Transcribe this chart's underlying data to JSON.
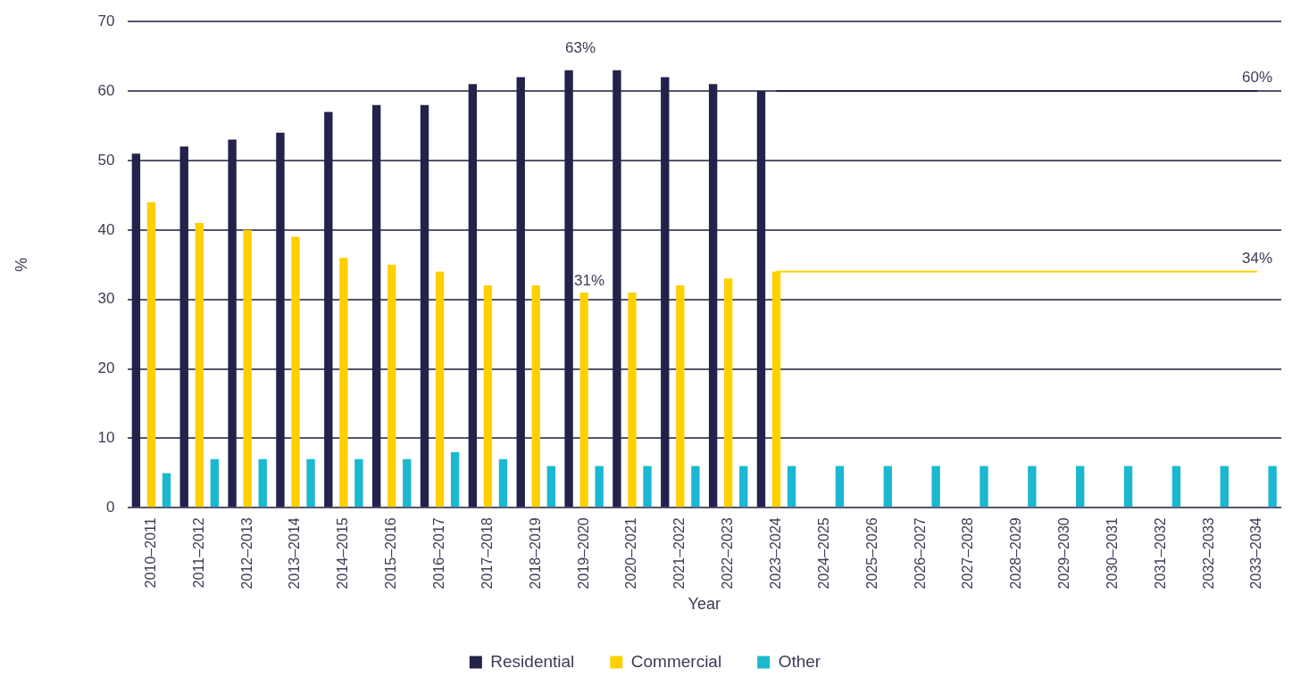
{
  "chart_data": {
    "type": "bar",
    "xlabel": "Year",
    "ylabel": "%",
    "categories": [
      "2010–2011",
      "2011–2012",
      "2012–2013",
      "2013–2014",
      "2014–2015",
      "2015–2016",
      "2016–2017",
      "2017–2018",
      "2018–2019",
      "2019–2020",
      "2020–2021",
      "2021–2022",
      "2022–2023",
      "2023–2024",
      "2024–2025",
      "2025–2026",
      "2026–2027",
      "2027–2028",
      "2028–2029",
      "2029–2030",
      "2030–2031",
      "2031–2032",
      "2032–2033",
      "2033–2034"
    ],
    "series": [
      {
        "name": "Residential",
        "color": "#23224a",
        "values": [
          51,
          52,
          53,
          54,
          57,
          58,
          58,
          61,
          62,
          63,
          63,
          62,
          61,
          60,
          null,
          null,
          null,
          null,
          null,
          null,
          null,
          null,
          null,
          null
        ]
      },
      {
        "name": "Commercial",
        "color": "#ffd000",
        "values": [
          44,
          41,
          40,
          39,
          36,
          35,
          34,
          32,
          32,
          31,
          31,
          32,
          33,
          34,
          null,
          null,
          null,
          null,
          null,
          null,
          null,
          null,
          null,
          null
        ]
      },
      {
        "name": "Other",
        "color": "#1cb8d0",
        "values": [
          5,
          7,
          7,
          7,
          7,
          7,
          8,
          7,
          6,
          6,
          6,
          6,
          6,
          6,
          6,
          6,
          6,
          6,
          6,
          6,
          6,
          6,
          6,
          6
        ]
      },
      {
        "type": "line",
        "color": "#23224a",
        "values": [
          null,
          null,
          null,
          null,
          null,
          null,
          null,
          null,
          null,
          null,
          null,
          null,
          null,
          60,
          60,
          60,
          60,
          60,
          60,
          60,
          60,
          60,
          60,
          60
        ]
      },
      {
        "type": "line",
        "color": "#ffd000",
        "values": [
          null,
          null,
          null,
          null,
          null,
          null,
          null,
          null,
          null,
          null,
          null,
          null,
          null,
          34,
          34,
          34,
          34,
          34,
          34,
          34,
          34,
          34,
          34,
          34
        ]
      }
    ],
    "ylim": [
      0,
      70
    ],
    "yticks": [
      0,
      10,
      20,
      30,
      40,
      50,
      60,
      70
    ],
    "grid": "y",
    "legend": "bottom",
    "marker": "none",
    "annotations": [
      "63%",
      {
        "text": "31%",
        "x": "2019–2020",
        "y": 31
      },
      {
        "text": "60%",
        "x": "2033–2034",
        "y": 60
      },
      {
        "text": "34%",
        "x": "2033–2034",
        "y": 34
      }
    ]
  }
}
